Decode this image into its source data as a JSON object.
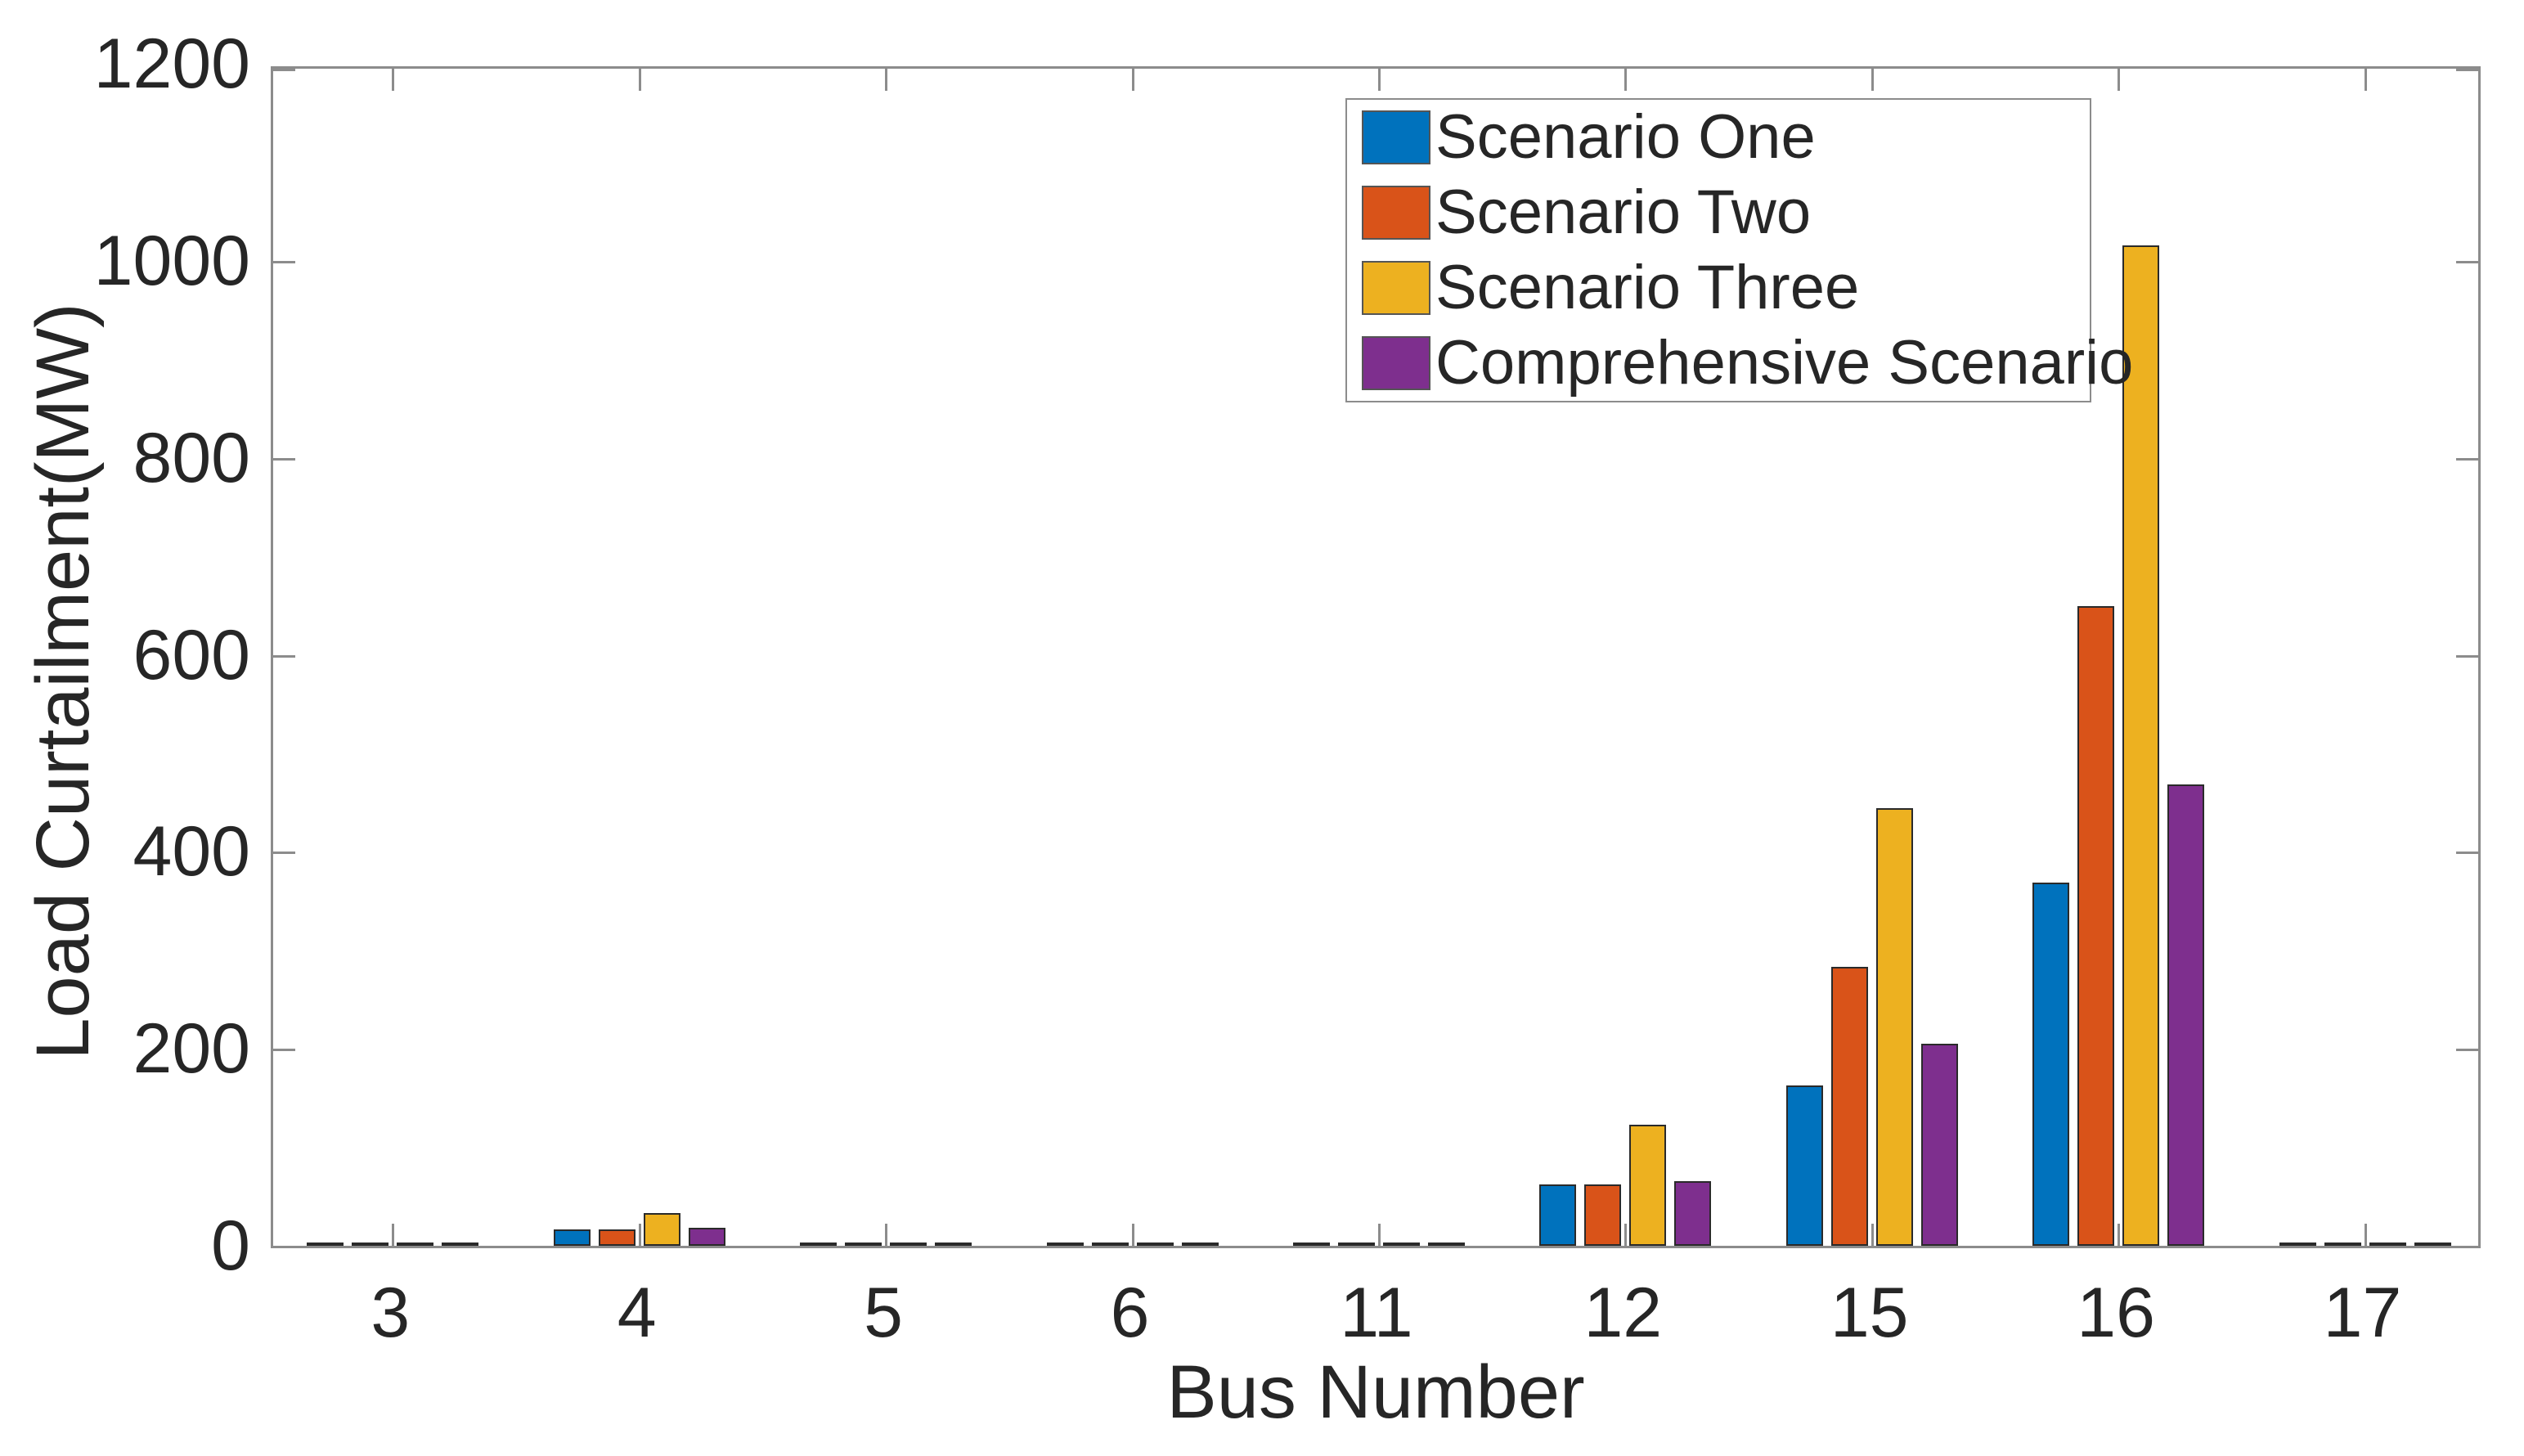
{
  "chart_data": {
    "type": "bar",
    "title": "",
    "xlabel": "Bus Number",
    "ylabel": "Load Curtailment(MW)",
    "categories": [
      "3",
      "4",
      "5",
      "6",
      "11",
      "12",
      "15",
      "16",
      "17"
    ],
    "series": [
      {
        "name": "Scenario One",
        "color": "#0072BD",
        "values": [
          0,
          17,
          0,
          0,
          0,
          62,
          163,
          369,
          0
        ]
      },
      {
        "name": "Scenario Two",
        "color": "#D95319",
        "values": [
          0,
          17,
          0,
          0,
          0,
          62,
          283,
          649,
          0
        ]
      },
      {
        "name": "Scenario Three",
        "color": "#EDB120",
        "values": [
          0,
          33,
          0,
          0,
          0,
          123,
          444,
          1016,
          0
        ]
      },
      {
        "name": "Comprehensive Scenario",
        "color": "#7E2F8E",
        "values": [
          0,
          18,
          0,
          0,
          0,
          66,
          205,
          468,
          0
        ]
      }
    ],
    "ylim": [
      0,
      1200
    ],
    "yticks": [
      0,
      200,
      400,
      600,
      800,
      1000,
      1200
    ],
    "grid": false,
    "legend_position": "inside-upper-right",
    "bar_group": "grouped"
  },
  "style": {
    "spine_color": "#8c8c8c",
    "bar_edge_color": "#2a2a2a",
    "text_color": "#262626",
    "background": "#ffffff"
  }
}
